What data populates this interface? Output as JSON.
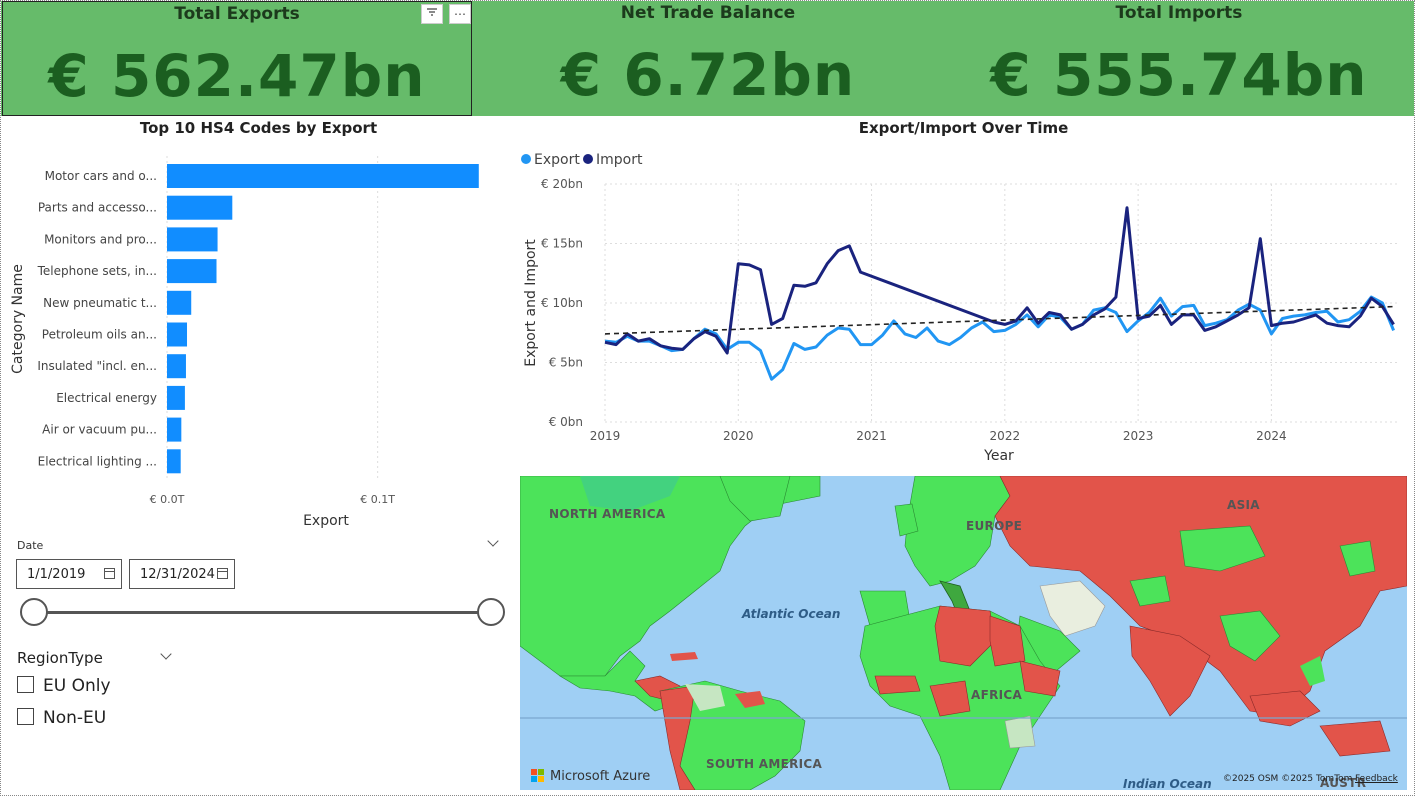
{
  "kpis": {
    "exports": {
      "title": "Total Exports",
      "value": "€ 562.47bn"
    },
    "balance": {
      "title": "Net Trade Balance",
      "value": "€ 6.72bn"
    },
    "imports": {
      "title": "Total Imports",
      "value": "€ 555.74bn"
    }
  },
  "visual_header": {
    "filter_icon": "filter-icon",
    "more_icon": "more-options-icon"
  },
  "bar_chart": {
    "title": "Top 10 HS4 Codes by Export",
    "xlabel": "Export",
    "ylabel": "Category Name",
    "x_ticks": [
      "€ 0.0T",
      "€ 0.1T"
    ],
    "color": "#118dff"
  },
  "line_chart": {
    "title": "Export/Import Over Time",
    "xlabel": "Year",
    "ylabel": "Export and Import",
    "legend": [
      "Export",
      "Import"
    ],
    "y_ticks": [
      "€ 20bn",
      "€ 15bn",
      "€ 10bn",
      "€ 5bn",
      "€ 0bn"
    ],
    "x_ticks": [
      "2019",
      "2020",
      "2021",
      "2022",
      "2023",
      "2024"
    ],
    "colors": {
      "export": "#2196f3",
      "import": "#1a237e",
      "trend": "#222222"
    }
  },
  "chart_data": [
    {
      "type": "bar",
      "title": "Top 10 HS4 Codes by Export",
      "xlabel": "Export",
      "ylabel": "Category Name",
      "categories": [
        "Motor cars and o...",
        "Parts and accesso...",
        "Monitors and pro...",
        "Telephone sets, in...",
        "New pneumatic t...",
        "Petroleum oils an...",
        "Insulated \"incl. en...",
        "Electrical energy",
        "Air or vacuum pu...",
        "Electrical lighting ..."
      ],
      "values": [
        0.148,
        0.031,
        0.024,
        0.0235,
        0.0115,
        0.0095,
        0.009,
        0.0085,
        0.0068,
        0.0065
      ],
      "unit": "T EUR",
      "xlim": [
        0,
        0.15
      ]
    },
    {
      "type": "line",
      "title": "Export/Import Over Time",
      "xlabel": "Year",
      "ylabel": "Export and Import",
      "ylim": [
        0,
        20
      ],
      "unit": "bn EUR",
      "series": [
        {
          "name": "Export",
          "x": [
            2019.0,
            2019.083,
            2019.167,
            2019.25,
            2019.333,
            2019.417,
            2019.5,
            2019.583,
            2019.667,
            2019.75,
            2019.833,
            2019.917,
            2020.0,
            2020.083,
            2020.167,
            2020.25,
            2020.333,
            2020.417,
            2020.5,
            2020.583,
            2020.667,
            2020.75,
            2020.833,
            2020.917,
            2021.0,
            2021.083,
            2021.167,
            2021.25,
            2021.333,
            2021.417,
            2021.5,
            2021.583,
            2021.667,
            2021.75,
            2021.833,
            2021.917,
            2022.0,
            2022.083,
            2022.167,
            2022.25,
            2022.333,
            2022.417,
            2022.5,
            2022.583,
            2022.667,
            2022.75,
            2022.833,
            2022.917,
            2023.0,
            2023.083,
            2023.167,
            2023.25,
            2023.333,
            2023.417,
            2023.5,
            2023.583,
            2023.667,
            2023.75,
            2023.833,
            2023.917,
            2024.0,
            2024.083,
            2024.167,
            2024.25,
            2024.333,
            2024.417,
            2024.5,
            2024.583,
            2024.667,
            2024.75,
            2024.833,
            2024.917
          ],
          "y": [
            6.8,
            6.7,
            7.2,
            6.8,
            6.8,
            6.4,
            6.0,
            6.1,
            7.0,
            7.8,
            7.4,
            6.1,
            6.7,
            6.7,
            6.0,
            3.6,
            4.4,
            6.6,
            6.1,
            6.3,
            7.3,
            7.9,
            7.8,
            6.5,
            6.5,
            7.3,
            8.5,
            7.4,
            7.1,
            7.9,
            6.8,
            6.5,
            7.1,
            7.9,
            8.4,
            7.6,
            7.7,
            8.2,
            9.0,
            8.0,
            9.0,
            8.8,
            7.8,
            8.2,
            9.4,
            9.6,
            9.2,
            7.6,
            8.5,
            9.2,
            10.4,
            8.9,
            9.7,
            9.8,
            8.1,
            8.3,
            8.6,
            9.4,
            9.9,
            9.4,
            7.4,
            8.7,
            8.9,
            9.0,
            9.2,
            9.3,
            8.4,
            8.6,
            9.3,
            10.5,
            10.0,
            7.7
          ]
        },
        {
          "name": "Import",
          "x": [
            2019.0,
            2019.083,
            2019.167,
            2019.25,
            2019.333,
            2019.417,
            2019.5,
            2019.583,
            2019.667,
            2019.75,
            2019.833,
            2019.917,
            2020.0,
            2020.083,
            2020.167,
            2020.25,
            2020.333,
            2020.417,
            2020.5,
            2020.583,
            2020.667,
            2020.75,
            2020.833,
            2020.917,
            2021.917,
            2022.0,
            2022.083,
            2022.167,
            2022.25,
            2022.333,
            2022.417,
            2022.5,
            2022.583,
            2022.667,
            2022.75,
            2022.833,
            2022.917,
            2023.0,
            2023.083,
            2023.167,
            2023.25,
            2023.333,
            2023.417,
            2023.5,
            2023.583,
            2023.667,
            2023.75,
            2023.833,
            2023.917,
            2024.0,
            2024.083,
            2024.167,
            2024.25,
            2024.333,
            2024.417,
            2024.5,
            2024.583,
            2024.667,
            2024.75,
            2024.833,
            2024.917
          ],
          "y": [
            6.7,
            6.5,
            7.4,
            6.8,
            7.0,
            6.4,
            6.2,
            6.1,
            7.0,
            7.6,
            7.2,
            5.8,
            13.3,
            13.2,
            12.8,
            8.2,
            8.7,
            11.5,
            11.4,
            11.7,
            13.3,
            14.4,
            14.8,
            12.6,
            8.4,
            8.2,
            8.5,
            9.6,
            8.3,
            9.2,
            9.0,
            7.8,
            8.2,
            9.0,
            9.5,
            10.5,
            18.0,
            8.7,
            8.9,
            9.8,
            8.2,
            9.0,
            9.0,
            7.7,
            8.0,
            8.5,
            9.0,
            9.6,
            15.4,
            8.1,
            8.3,
            8.4,
            8.7,
            9.0,
            8.3,
            8.1,
            8.0,
            8.9,
            10.4,
            9.7,
            8.2
          ]
        },
        {
          "name": "Trend",
          "x": [
            2019,
            2024.917
          ],
          "y": [
            7.4,
            9.7
          ]
        }
      ]
    }
  ],
  "date_slicer": {
    "label": "Date",
    "start": "1/1/2019",
    "end": "12/31/2024"
  },
  "region_slicer": {
    "title": "RegionType",
    "options": [
      "EU Only",
      "Non-EU"
    ]
  },
  "map": {
    "labels": {
      "na": "NORTH AMERICA",
      "eu": "EUROPE",
      "asia": "ASIA",
      "africa": "AFRICA",
      "sa": "SOUTH AMERICA",
      "au": "AUSTR"
    },
    "oceans": {
      "atlantic": "Atlantic Ocean",
      "indian": "Indian Ocean"
    },
    "logo_text": "Microsoft Azure",
    "attribution": "©2025 OSM  ©2025 TomTom",
    "feedback": "Feedback",
    "colors": {
      "ocean": "#9fcff4",
      "export_heavy": "#4ce35a",
      "import_heavy": "#e2544a",
      "neutral": "#e9eedf"
    }
  }
}
